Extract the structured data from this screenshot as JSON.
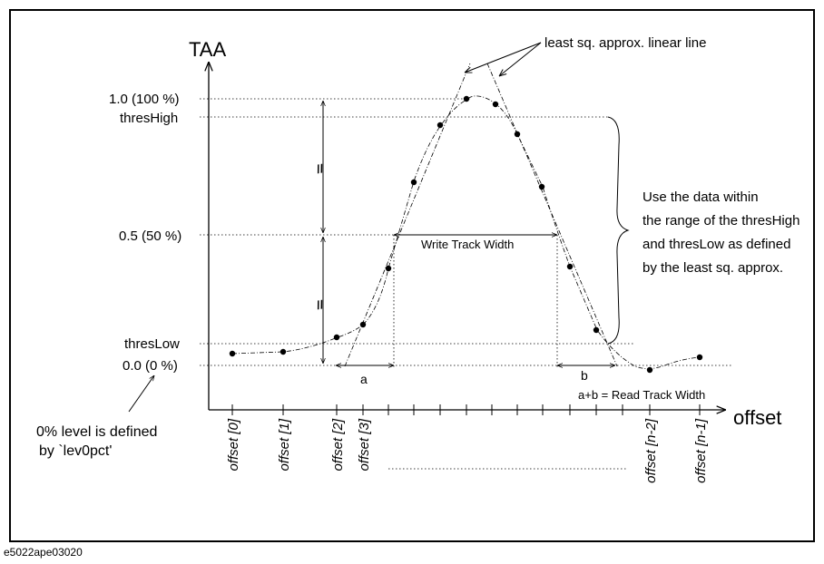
{
  "figure_id": "e5022ape03020",
  "axes": {
    "y_title": "TAA",
    "x_title": "offset"
  },
  "y_levels": {
    "full": "1.0 (100 %)",
    "high": "thresHigh",
    "half": "0.5 (50 %)",
    "low": "thresLow",
    "zero": "0.0 (0 %)"
  },
  "annotations": {
    "least_sq": "least sq. approx. linear line",
    "write_track": "Write Track Width",
    "a": "a",
    "b": "b",
    "read_track": "a+b = Read Track Width",
    "use_data_line1": "Use the data within",
    "use_data_line2": "the range of the thresHigh",
    "use_data_line3": "and thresLow as defined",
    "use_data_line4": "by the least sq. approx.",
    "zero_note_line1": "0% level is defined",
    "zero_note_line2": "by `lev0pct'",
    "break_mark": "//"
  },
  "offset_labels": [
    "offset [0]",
    "offset [1]",
    "offset [2]",
    "offset [3]",
    "offset [n-2]",
    "offset [n-1]"
  ]
}
